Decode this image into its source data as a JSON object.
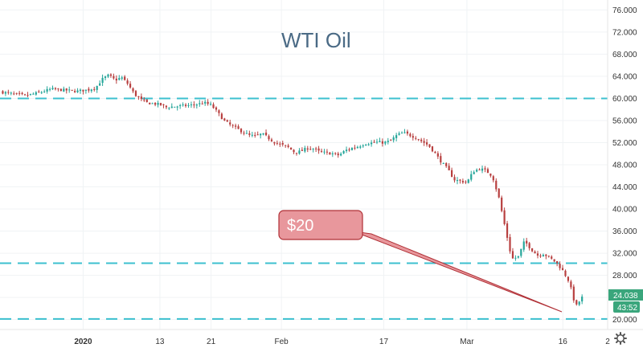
{
  "chart_data": {
    "type": "candlestick",
    "title": "WTI Oil",
    "y_ticks": [
      "76.000",
      "72.000",
      "68.000",
      "64.000",
      "60.000",
      "56.000",
      "52.000",
      "48.000",
      "44.000",
      "40.000",
      "36.000",
      "32.000",
      "28.000",
      "24.000",
      "20.000"
    ],
    "y_tick_values": [
      76,
      72,
      68,
      64,
      60,
      56,
      52,
      48,
      44,
      40,
      36,
      32,
      28,
      24,
      20
    ],
    "ylim": [
      18.2,
      77.8
    ],
    "x_ticks": [
      {
        "label": "2020",
        "date": "2020-01-01",
        "bold": true
      },
      {
        "label": "13",
        "date": "2020-01-13",
        "bold": false
      },
      {
        "label": "21",
        "date": "2020-01-21",
        "bold": false
      },
      {
        "label": "Feb",
        "date": "2020-02-01",
        "bold": false
      },
      {
        "label": "17",
        "date": "2020-02-17",
        "bold": false
      },
      {
        "label": "Mar",
        "date": "2020-03-01",
        "bold": false
      },
      {
        "label": "16",
        "date": "2020-03-16",
        "bold": false
      },
      {
        "label": "2",
        "date": "2020-03-23",
        "bold": false
      }
    ],
    "xlim": [
      "2019-12-19",
      "2020-03-23"
    ],
    "horizontal_levels": [
      60,
      30.2,
      20.1
    ],
    "current_price": "24.038",
    "countdown": "43:52",
    "annotation": {
      "text": "$20"
    },
    "colors": {
      "up": "#26a69a",
      "down": "#b84040",
      "level": "#3cc0cf",
      "badge": "#3aa67c",
      "callout_fill": "#e8979c",
      "callout_border": "#b03036"
    },
    "close_path": [
      [
        "2019-12-19",
        61.2
      ],
      [
        "2019-12-21",
        60.8
      ],
      [
        "2019-12-23",
        60.5
      ],
      [
        "2019-12-25",
        61.0
      ],
      [
        "2019-12-27",
        61.7
      ],
      [
        "2019-12-29",
        61.5
      ],
      [
        "2019-12-31",
        61.3
      ],
      [
        "2020-01-02",
        61.6
      ],
      [
        "2020-01-03",
        62.0
      ],
      [
        "2020-01-04",
        63.5
      ],
      [
        "2020-01-05",
        64.2
      ],
      [
        "2020-01-06",
        63.3
      ],
      [
        "2020-01-07",
        63.8
      ],
      [
        "2020-01-08",
        62.6
      ],
      [
        "2020-01-09",
        60.8
      ],
      [
        "2020-01-10",
        59.8
      ],
      [
        "2020-01-11",
        59.2
      ],
      [
        "2020-01-13",
        58.9
      ],
      [
        "2020-01-14",
        58.4
      ],
      [
        "2020-01-16",
        58.6
      ],
      [
        "2020-01-18",
        58.8
      ],
      [
        "2020-01-20",
        59.2
      ],
      [
        "2020-01-21",
        58.8
      ],
      [
        "2020-01-22",
        57.5
      ],
      [
        "2020-01-23",
        56.0
      ],
      [
        "2020-01-24",
        55.2
      ],
      [
        "2020-01-26",
        53.9
      ],
      [
        "2020-01-27",
        53.3
      ],
      [
        "2020-01-28",
        53.2
      ],
      [
        "2020-01-29",
        53.6
      ],
      [
        "2020-01-30",
        52.8
      ],
      [
        "2020-01-31",
        52.0
      ],
      [
        "2020-02-02",
        51.2
      ],
      [
        "2020-02-03",
        50.3
      ],
      [
        "2020-02-04",
        50.4
      ],
      [
        "2020-02-05",
        51.0
      ],
      [
        "2020-02-06",
        50.9
      ],
      [
        "2020-02-07",
        50.3
      ],
      [
        "2020-02-09",
        50.0
      ],
      [
        "2020-02-10",
        49.7
      ],
      [
        "2020-02-11",
        50.6
      ],
      [
        "2020-02-12",
        51.0
      ],
      [
        "2020-02-13",
        51.3
      ],
      [
        "2020-02-14",
        51.8
      ],
      [
        "2020-02-16",
        52.1
      ],
      [
        "2020-02-17",
        52.0
      ],
      [
        "2020-02-18",
        52.3
      ],
      [
        "2020-02-19",
        53.3
      ],
      [
        "2020-02-20",
        53.8
      ],
      [
        "2020-02-21",
        53.4
      ],
      [
        "2020-02-22",
        52.9
      ],
      [
        "2020-02-24",
        51.5
      ],
      [
        "2020-02-25",
        50.1
      ],
      [
        "2020-02-26",
        48.5
      ],
      [
        "2020-02-27",
        47.2
      ],
      [
        "2020-02-28",
        45.3
      ],
      [
        "2020-03-01",
        44.8
      ],
      [
        "2020-03-02",
        46.8
      ],
      [
        "2020-03-03",
        47.3
      ],
      [
        "2020-03-04",
        46.9
      ],
      [
        "2020-03-05",
        45.9
      ],
      [
        "2020-03-06",
        42.0
      ],
      [
        "2020-03-08",
        31.0
      ],
      [
        "2020-03-09",
        31.3
      ],
      [
        "2020-03-10",
        34.2
      ],
      [
        "2020-03-11",
        32.8
      ],
      [
        "2020-03-12",
        31.6
      ],
      [
        "2020-03-13",
        31.9
      ],
      [
        "2020-03-15",
        30.3
      ],
      [
        "2020-03-16",
        28.8
      ],
      [
        "2020-03-17",
        26.8
      ],
      [
        "2020-03-18",
        22.3
      ],
      [
        "2020-03-19",
        24.0
      ]
    ]
  }
}
